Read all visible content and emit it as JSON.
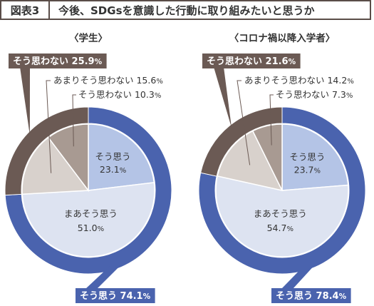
{
  "header": {
    "figure_label": "図表3",
    "title": "今後、SDGsを意識した行動に取り組みたいと思うか"
  },
  "colors": {
    "outer_positive": "#4a63ae",
    "outer_negative": "#6b5a54",
    "inner_agree": "#b4c4e6",
    "inner_somewhat_agree": "#dde3f1",
    "inner_somewhat_disagree": "#d8d1cc",
    "inner_disagree": "#a89a92",
    "leader_line": "#6b5a54",
    "header_border": "#5a4d48"
  },
  "chart_data": [
    {
      "type": "pie",
      "title": "〈学生〉",
      "inner_ring": [
        {
          "label": "そう思う",
          "value": 23.1,
          "unit": "%"
        },
        {
          "label": "まあそう思う",
          "value": 51.0,
          "unit": "%"
        },
        {
          "label": "あまりそう思わない",
          "value": 15.6,
          "unit": "%"
        },
        {
          "label": "そう思わない",
          "value": 10.3,
          "unit": "%"
        }
      ],
      "outer_ring": [
        {
          "label": "そう思う",
          "value": 74.1,
          "unit": "%"
        },
        {
          "label": "そう思わない",
          "value": 25.9,
          "unit": "%"
        }
      ]
    },
    {
      "type": "pie",
      "title": "〈コロナ禍以降入学者〉",
      "inner_ring": [
        {
          "label": "そう思う",
          "value": 23.7,
          "unit": "%"
        },
        {
          "label": "まあそう思う",
          "value": 54.7,
          "unit": "%"
        },
        {
          "label": "あまりそう思わない",
          "value": 14.2,
          "unit": "%"
        },
        {
          "label": "そう思わない",
          "value": 7.3,
          "unit": "%"
        }
      ],
      "outer_ring": [
        {
          "label": "そう思う",
          "value": 78.4,
          "unit": "%"
        },
        {
          "label": "そう思わない",
          "value": 21.6,
          "unit": "%"
        }
      ]
    }
  ]
}
